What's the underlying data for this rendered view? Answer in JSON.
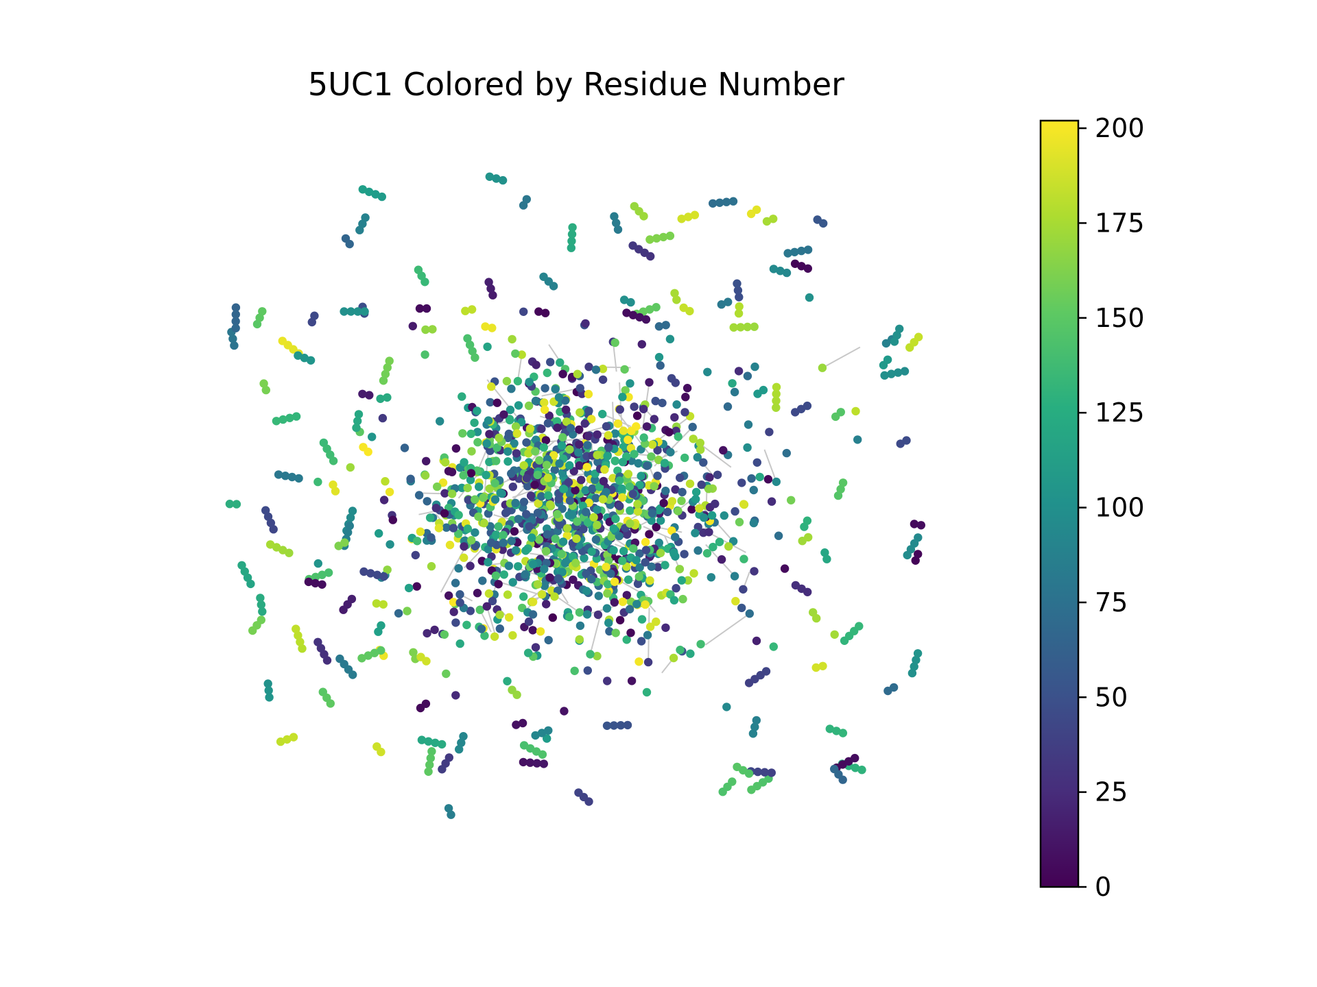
{
  "chart_data": {
    "type": "scatter",
    "title": "5UC1 Colored by Residue Number",
    "xlabel": "",
    "ylabel": "",
    "axes_visible": false,
    "grid": false,
    "edge_color": "#c8c8c8",
    "colormap": "viridis",
    "colorbar": {
      "range": [
        0,
        202
      ],
      "ticks": [
        0,
        25,
        50,
        75,
        100,
        125,
        150,
        175,
        200
      ],
      "tick_labels": [
        "0",
        "25",
        "50",
        "75",
        "100",
        "125",
        "150",
        "175",
        "200"
      ],
      "placement": "right"
    },
    "node_count_estimate": 1600,
    "note_layout": "force-directed graph of residues; dense core with satellite fragments around it"
  }
}
